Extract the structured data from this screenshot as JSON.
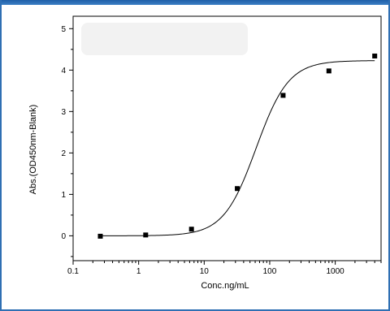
{
  "chart_data": {
    "type": "scatter",
    "xlabel": "Conc.ng/mL",
    "ylabel": "Abs.(OD450nm-Blank)",
    "xscale": "log",
    "xlim": [
      0.1,
      5000
    ],
    "ylim": [
      -0.6,
      5.3
    ],
    "xticks": [
      0.1,
      1,
      10,
      100,
      1000
    ],
    "xtick_labels": [
      "0.1",
      "1",
      "10",
      "100",
      "1000"
    ],
    "yticks": [
      0,
      1,
      2,
      3,
      4,
      5
    ],
    "ytick_labels": [
      "0",
      "1",
      "2",
      "3",
      "4",
      "5"
    ],
    "grid": false,
    "legend": "none",
    "points": [
      {
        "x": 0.26,
        "y": -0.01
      },
      {
        "x": 1.28,
        "y": 0.02
      },
      {
        "x": 6.4,
        "y": 0.16
      },
      {
        "x": 32,
        "y": 1.14
      },
      {
        "x": 160,
        "y": 3.39
      },
      {
        "x": 800,
        "y": 3.98
      },
      {
        "x": 4000,
        "y": 4.34
      }
    ],
    "fit": {
      "type": "4PL",
      "bottom": 0.0,
      "top": 4.23,
      "ec50": 62,
      "hill": 1.75,
      "x_from": 0.26,
      "x_to": 4000
    }
  },
  "colors": {
    "frame": "#2f6fb3",
    "marker": "#000000",
    "line": "#000000"
  }
}
